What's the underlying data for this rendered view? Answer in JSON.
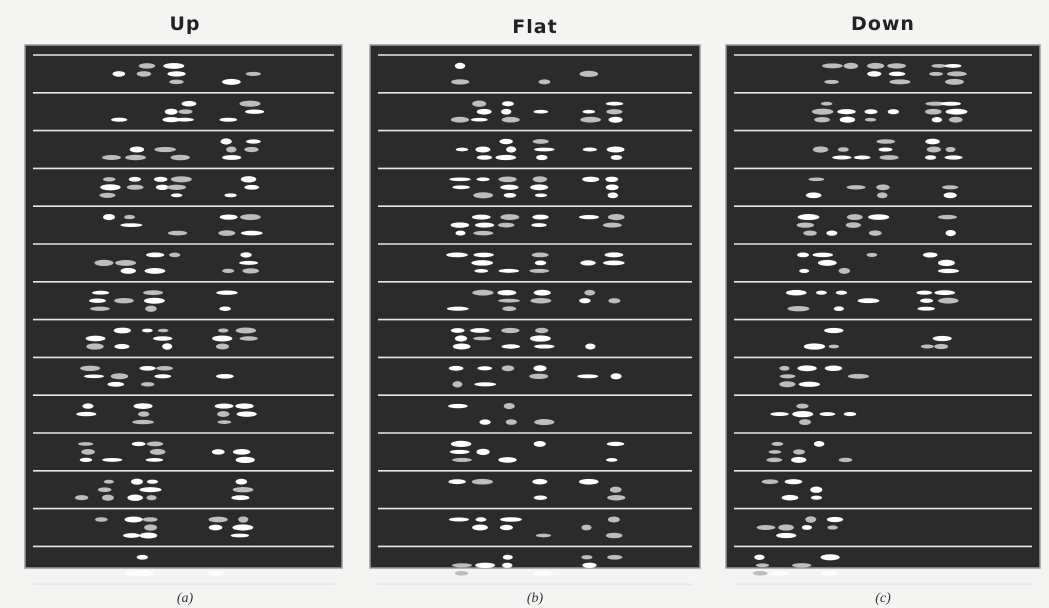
{
  "panels": [
    {
      "title": "Up",
      "caption": "(a)"
    },
    {
      "title": "Flat",
      "caption": "(b)"
    },
    {
      "title": "Down",
      "caption": "(c)"
    }
  ]
}
